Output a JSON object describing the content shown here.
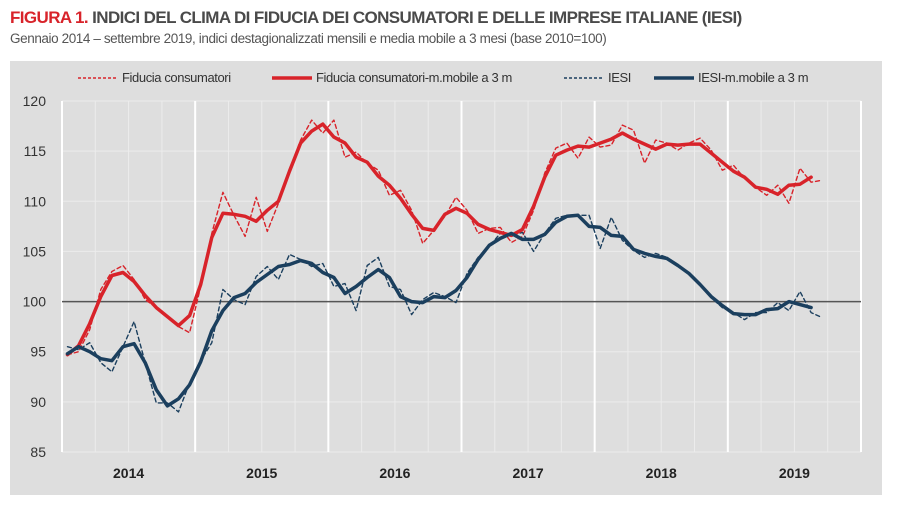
{
  "header": {
    "title_lead": "FIGURA 1.",
    "title_rest": "INDICI DEL CLIMA DI FIDUCIA DEI CONSUMATORI E DELLE IMPRESE ITALIANE (IESI)",
    "subtitle": "Gennaio 2014 – settembre 2019, indici destagionalizzati mensili e media mobile a 3 mesi (base 2010=100)"
  },
  "chart_data": {
    "type": "line",
    "title": "FIGURA 1. INDICI DEL CLIMA DI FIDUCIA DEI CONSUMATORI E DELLE IMPRESE ITALIANE (IESI)",
    "subtitle": "Gennaio 2014 – settembre 2019, indici destagionalizzati mensili e media mobile a 3 mesi (base 2010=100)",
    "x_start": "2014-01",
    "x_end": "2019-09",
    "x_tick_labels": [
      "2014",
      "2015",
      "2016",
      "2017",
      "2018",
      "2019"
    ],
    "y_tick_labels": [
      "85",
      "90",
      "95",
      "100",
      "105",
      "110",
      "115",
      "120"
    ],
    "ylim": [
      85,
      120
    ],
    "reference_line": 100,
    "grid": true,
    "legend_position": "top",
    "series": [
      {
        "name": "Fiducia consumatori",
        "style": "dashed",
        "color": "#d8232a",
        "values": [
          94.7,
          95.0,
          97.2,
          101.2,
          103.0,
          103.6,
          102.2,
          100.2,
          99.4,
          98.5,
          97.5,
          96.9,
          101.5,
          106.8,
          110.9,
          108.6,
          106.5,
          110.4,
          107.0,
          109.8,
          113.1,
          116.1,
          118.1,
          116.8,
          118.1,
          114.4,
          114.9,
          113.8,
          113.1,
          110.6,
          111.1,
          109.1,
          105.8,
          107.1,
          108.5,
          110.4,
          109.1,
          106.8,
          107.3,
          107.4,
          105.9,
          106.5,
          109.1,
          112.8,
          115.3,
          115.8,
          114.3,
          116.4,
          115.4,
          115.6,
          117.6,
          117.1,
          113.8,
          116.1,
          115.8,
          115.1,
          115.8,
          116.3,
          115.1,
          113.1,
          113.6,
          112.3,
          111.4,
          110.6,
          111.6,
          109.8,
          113.3,
          111.9,
          112.1
        ]
      },
      {
        "name": "Fiducia consumatori-m.mobile a 3 m",
        "style": "solid",
        "color": "#d8232a",
        "values": [
          94.7,
          95.6,
          97.8,
          100.5,
          102.6,
          102.9,
          102.0,
          100.6,
          99.4,
          98.5,
          97.6,
          98.6,
          101.7,
          106.4,
          108.8,
          108.7,
          108.5,
          108.0,
          109.1,
          110.0,
          113.0,
          115.8,
          117.0,
          117.7,
          116.4,
          115.8,
          114.4,
          113.9,
          112.5,
          111.6,
          110.3,
          108.7,
          107.3,
          107.1,
          108.7,
          109.3,
          108.8,
          107.7,
          107.2,
          106.9,
          106.6,
          107.2,
          109.5,
          112.4,
          114.6,
          115.1,
          115.5,
          115.4,
          115.8,
          116.2,
          116.8,
          116.2,
          115.7,
          115.2,
          115.7,
          115.6,
          115.7,
          115.7,
          114.8,
          113.9,
          113.0,
          112.4,
          111.4,
          111.2,
          110.7,
          111.6,
          111.7,
          112.4
        ]
      },
      {
        "name": "IESI",
        "style": "dashed",
        "color": "#1b3f5e",
        "values": [
          95.5,
          95.2,
          95.9,
          93.9,
          93.0,
          95.5,
          98.0,
          93.9,
          89.9,
          89.9,
          89.0,
          91.9,
          94.1,
          95.9,
          101.2,
          100.2,
          99.7,
          102.5,
          103.5,
          102.2,
          104.7,
          104.2,
          103.5,
          103.8,
          101.5,
          101.8,
          99.1,
          103.6,
          104.4,
          101.5,
          101.2,
          98.7,
          100.2,
          100.9,
          100.5,
          99.9,
          102.8,
          104.4,
          105.5,
          106.8,
          106.6,
          106.9,
          105.0,
          106.8,
          108.3,
          108.6,
          108.6,
          108.6,
          105.3,
          108.4,
          106.1,
          105.1,
          104.4,
          104.8,
          104.4,
          103.6,
          102.9,
          101.8,
          100.4,
          99.4,
          98.9,
          98.2,
          98.9,
          98.9,
          99.9,
          99.1,
          101.0,
          98.9,
          98.4
        ]
      },
      {
        "name": "IESI-m.mobile a 3 m",
        "style": "solid",
        "color": "#1b3f5e",
        "values": [
          94.8,
          95.5,
          95.0,
          94.3,
          94.1,
          95.5,
          95.8,
          93.9,
          91.2,
          89.6,
          90.3,
          91.7,
          94.0,
          97.1,
          99.1,
          100.4,
          100.8,
          101.9,
          102.7,
          103.5,
          103.7,
          104.1,
          103.8,
          102.9,
          102.4,
          100.8,
          101.5,
          102.4,
          103.2,
          102.4,
          100.5,
          100.0,
          99.9,
          100.5,
          100.4,
          101.1,
          102.4,
          104.2,
          105.6,
          106.3,
          106.8,
          106.2,
          106.2,
          106.7,
          107.9,
          108.5,
          108.6,
          107.5,
          107.4,
          106.6,
          106.5,
          105.2,
          104.8,
          104.5,
          104.3,
          103.6,
          102.8,
          101.7,
          100.5,
          99.6,
          98.8,
          98.7,
          98.7,
          99.2,
          99.3,
          100.0,
          99.7,
          99.4
        ]
      }
    ]
  },
  "legend": [
    {
      "label": "Fiducia consumatori"
    },
    {
      "label": "Fiducia consumatori-m.mobile a 3 m"
    },
    {
      "label": "IESI"
    },
    {
      "label": "IESI-m.mobile a 3 m"
    }
  ]
}
